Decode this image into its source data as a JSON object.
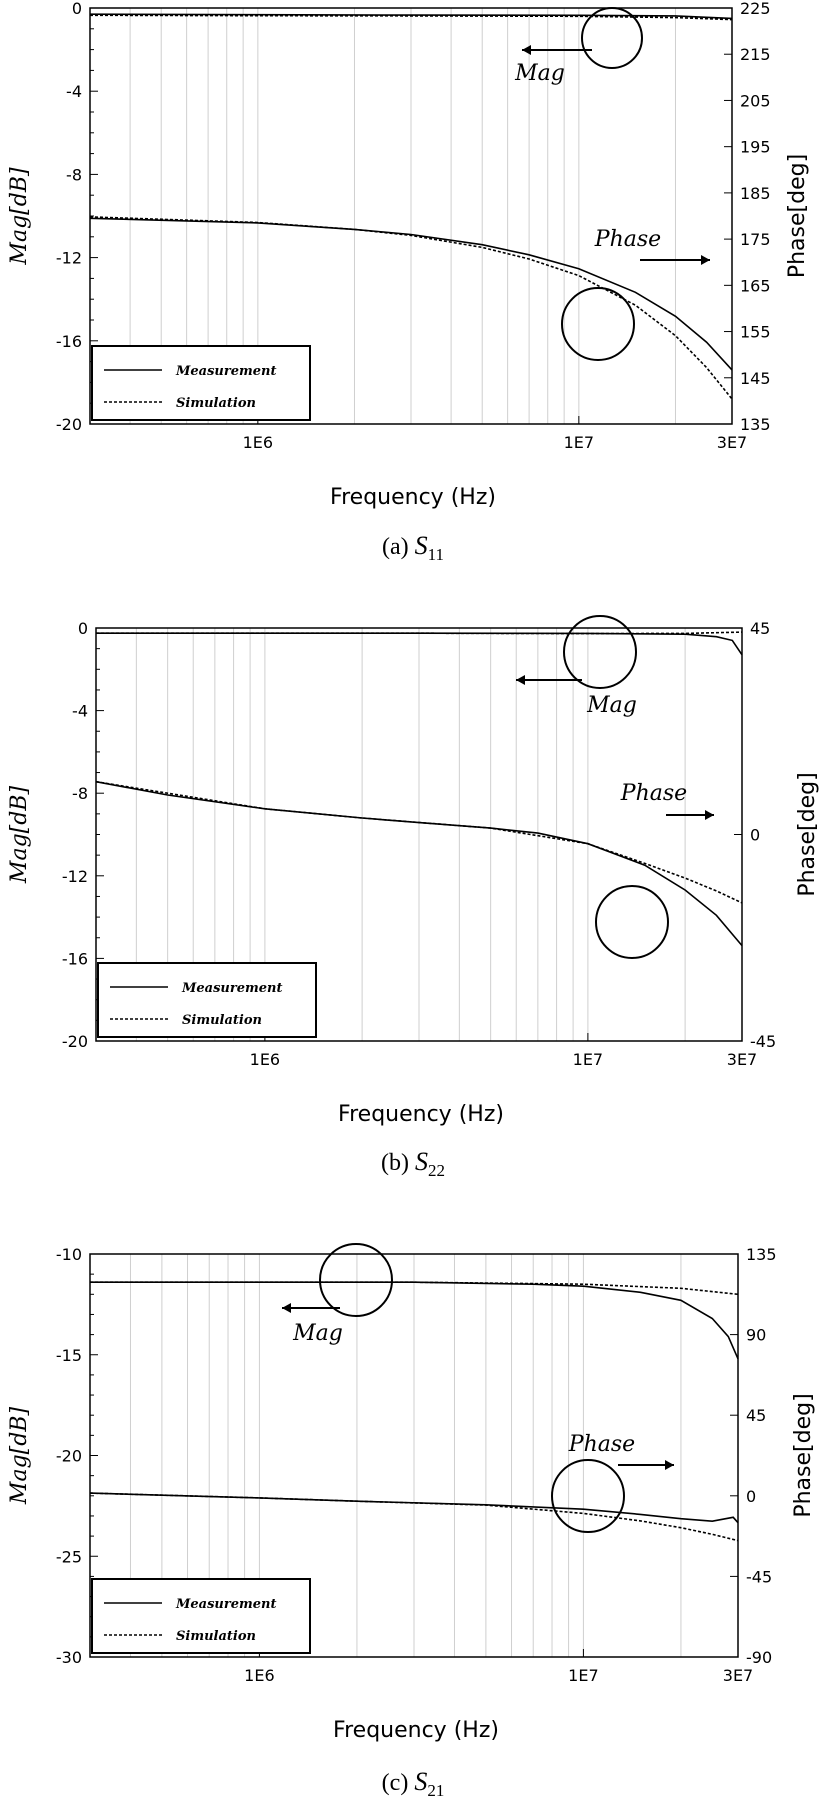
{
  "chart_data": [
    {
      "type": "line",
      "caption": "(a)",
      "param": "S",
      "param_sub": "11",
      "xlabel": "Frequency (Hz)",
      "xscale": "log",
      "xlim": [
        300000,
        30000000
      ],
      "xticks": [
        {
          "value": 1000000,
          "label": "1E6"
        },
        {
          "value": 10000000,
          "label": "1E7"
        },
        {
          "value": 30000000,
          "label": "3E7"
        }
      ],
      "ylabel_left": "Mag[dB]",
      "ylim_left": [
        -20,
        0
      ],
      "yticks_left": [
        0,
        -4,
        -8,
        -12,
        -16,
        -20
      ],
      "ylabel_right": "Phase[deg]",
      "ylim_right": [
        135,
        225
      ],
      "yticks_right": [
        225,
        215,
        205,
        195,
        185,
        175,
        165,
        155,
        145,
        135
      ],
      "annotations": [
        {
          "text": "Mag",
          "target": "left",
          "points_to": "left"
        },
        {
          "text": "Phase",
          "target": "right",
          "points_to": "right"
        }
      ],
      "legend": {
        "position": "bottom-left",
        "entries": [
          "Measurement",
          "Simulation"
        ]
      },
      "series": [
        {
          "name": "Measurement",
          "axis": "left",
          "style": "solid",
          "x": [
            300000,
            1000000,
            3000000,
            10000000,
            20000000,
            30000000
          ],
          "values": [
            -0.3,
            -0.32,
            -0.34,
            -0.35,
            -0.38,
            -0.5
          ]
        },
        {
          "name": "Simulation",
          "axis": "left",
          "style": "dashed",
          "x": [
            300000,
            1000000,
            3000000,
            10000000,
            20000000,
            30000000
          ],
          "values": [
            -0.35,
            -0.37,
            -0.38,
            -0.4,
            -0.46,
            -0.56
          ]
        },
        {
          "name": "Measurement",
          "axis": "right",
          "style": "solid",
          "x": [
            300000,
            1000000,
            2000000,
            3000000,
            5000000,
            7000000,
            10000000,
            15000000,
            20000000,
            25000000,
            30000000
          ],
          "values": [
            179.5,
            178.5,
            177.1,
            176,
            173.8,
            171.6,
            168.6,
            163.5,
            158.3,
            152.7,
            146.7
          ]
        },
        {
          "name": "Simulation",
          "axis": "right",
          "style": "dashed",
          "x": [
            300000,
            1000000,
            2000000,
            3000000,
            5000000,
            7000000,
            10000000,
            15000000,
            20000000,
            25000000,
            30000000
          ],
          "values": [
            179.8,
            178.6,
            177.1,
            175.8,
            173.2,
            170.7,
            167.1,
            160.7,
            154.1,
            147.2,
            140.4
          ]
        }
      ]
    },
    {
      "type": "line",
      "caption": "(b)",
      "param": "S",
      "param_sub": "22",
      "xlabel": "Frequency (Hz)",
      "xscale": "log",
      "xlim": [
        300000,
        30000000
      ],
      "xticks": [
        {
          "value": 1000000,
          "label": "1E6"
        },
        {
          "value": 10000000,
          "label": "1E7"
        },
        {
          "value": 30000000,
          "label": "3E7"
        }
      ],
      "ylabel_left": "Mag[dB]",
      "ylim_left": [
        -20,
        0
      ],
      "yticks_left": [
        0,
        -4,
        -8,
        -12,
        -16,
        -20
      ],
      "ylabel_right": "Phase[deg]",
      "ylim_right": [
        -45,
        45
      ],
      "yticks_right": [
        45,
        0,
        -45
      ],
      "annotations": [
        {
          "text": "Mag",
          "target": "left",
          "points_to": "left"
        },
        {
          "text": "Phase",
          "target": "right",
          "points_to": "right"
        }
      ],
      "legend": {
        "position": "bottom-left",
        "entries": [
          "Measurement",
          "Simulation"
        ]
      },
      "series": [
        {
          "name": "Measurement",
          "axis": "left",
          "style": "solid",
          "x": [
            300000,
            1000000,
            3000000,
            10000000,
            20000000,
            25000000,
            28000000,
            30000000
          ],
          "values": [
            -0.25,
            -0.25,
            -0.25,
            -0.26,
            -0.3,
            -0.42,
            -0.6,
            -1.3
          ]
        },
        {
          "name": "Simulation",
          "axis": "left",
          "style": "dashed",
          "x": [
            300000,
            1000000,
            3000000,
            10000000,
            20000000,
            30000000
          ],
          "values": [
            -0.25,
            -0.25,
            -0.25,
            -0.27,
            -0.26,
            -0.2
          ]
        },
        {
          "name": "Measurement",
          "axis": "right",
          "style": "solid",
          "x": [
            300000,
            500000,
            1000000,
            2000000,
            3000000,
            5000000,
            7000000,
            10000000,
            15000000,
            20000000,
            25000000,
            30000000
          ],
          "values": [
            11.5,
            8.6,
            5.6,
            3.6,
            2.6,
            1.4,
            0.3,
            -2.0,
            -6.7,
            -12.1,
            -17.6,
            -24.2
          ]
        },
        {
          "name": "Simulation",
          "axis": "right",
          "style": "dashed",
          "x": [
            300000,
            1000000,
            2000000,
            5000000,
            10000000,
            15000000,
            20000000,
            25000000,
            30000000
          ],
          "values": [
            11.5,
            5.6,
            3.6,
            1.4,
            -2.0,
            -6.3,
            -9.5,
            -12.3,
            -14.9
          ]
        }
      ]
    },
    {
      "type": "line",
      "caption": "(c)",
      "param": "S",
      "param_sub": "21",
      "xlabel": "Frequency (Hz)",
      "xscale": "log",
      "xlim": [
        300000,
        30000000
      ],
      "xticks": [
        {
          "value": 1000000,
          "label": "1E6"
        },
        {
          "value": 10000000,
          "label": "1E7"
        },
        {
          "value": 30000000,
          "label": "3E7"
        }
      ],
      "ylabel_left": "Mag[dB]",
      "ylim_left": [
        -30,
        -10
      ],
      "yticks_left": [
        -10,
        -15,
        -20,
        -25,
        -30
      ],
      "ylabel_right": "Phase[deg]",
      "ylim_right": [
        -90,
        135
      ],
      "yticks_right": [
        135,
        90,
        45,
        0,
        -45,
        -90
      ],
      "annotations": [
        {
          "text": "Mag",
          "target": "left",
          "points_to": "left"
        },
        {
          "text": "Phase",
          "target": "right",
          "points_to": "right"
        }
      ],
      "legend": {
        "position": "bottom-left",
        "entries": [
          "Measurement",
          "Simulation"
        ]
      },
      "series": [
        {
          "name": "Measurement",
          "axis": "left",
          "style": "solid",
          "x": [
            300000,
            1000000,
            3000000,
            7000000,
            10000000,
            15000000,
            20000000,
            25000000,
            28000000,
            30000000
          ],
          "values": [
            -11.4,
            -11.4,
            -11.4,
            -11.5,
            -11.6,
            -11.9,
            -12.3,
            -13.2,
            -14.1,
            -15.2
          ]
        },
        {
          "name": "Simulation",
          "axis": "left",
          "style": "dashed",
          "x": [
            300000,
            1000000,
            3000000,
            10000000,
            20000000,
            30000000
          ],
          "values": [
            -11.4,
            -11.4,
            -11.4,
            -11.5,
            -11.7,
            -12.0
          ]
        },
        {
          "name": "Measurement",
          "axis": "right",
          "style": "solid",
          "x": [
            300000,
            1000000,
            2000000,
            5000000,
            10000000,
            15000000,
            20000000,
            25000000,
            29000000,
            30000000
          ],
          "values": [
            1.5,
            -1.2,
            -3.0,
            -5.0,
            -7.5,
            -10.4,
            -12.8,
            -14.2,
            -12.0,
            -15.0
          ]
        },
        {
          "name": "Simulation",
          "axis": "right",
          "style": "dashed",
          "x": [
            300000,
            1000000,
            2000000,
            5000000,
            10000000,
            15000000,
            20000000,
            25000000,
            30000000
          ],
          "values": [
            1.5,
            -1.2,
            -3.0,
            -5.2,
            -9.8,
            -14.0,
            -17.8,
            -21.5,
            -25.0
          ]
        }
      ]
    }
  ]
}
